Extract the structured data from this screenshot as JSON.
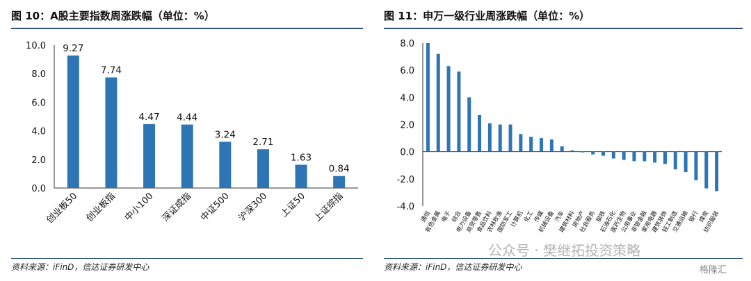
{
  "left": {
    "title": "图 10：A股主要指数周涨跌幅（单位：%）",
    "source": "资料来源：iFinD，信达证券研发中心",
    "chart_data": {
      "type": "bar",
      "categories": [
        "创业板50",
        "创业板指",
        "中小100",
        "深证成指",
        "中证500",
        "沪深300",
        "上证50",
        "上证综指"
      ],
      "values": [
        9.27,
        7.74,
        4.47,
        4.44,
        3.24,
        2.71,
        1.63,
        0.84
      ],
      "value_labels": [
        "9.27",
        "7.74",
        "4.47",
        "4.44",
        "3.24",
        "2.71",
        "1.63",
        "0.84"
      ],
      "ylim": [
        0,
        10
      ],
      "yticks": [
        "0.0",
        "2.0",
        "4.0",
        "6.0",
        "8.0",
        "10.0"
      ],
      "bar_color": "#2e75b6"
    }
  },
  "right": {
    "title": "图 11：申万一级行业周涨跌幅（单位：%）",
    "source": "资料来源：iFinD，信达证券研发中心",
    "chart_data": {
      "type": "bar",
      "categories": [
        "通信",
        "有色金属",
        "电子",
        "综合",
        "电力设备",
        "商贸零售",
        "食品饮料",
        "农林牧渔",
        "国防军工",
        "计算机",
        "化工",
        "传媒",
        "机械设备",
        "汽车",
        "建筑材料",
        "房地产",
        "社会服务",
        "钢铁",
        "石油石化",
        "医药生物",
        "公用事业",
        "非银金融",
        "家用电器",
        "建筑装饰",
        "轻工制造",
        "交通运输",
        "银行",
        "煤炭",
        "纺织服装"
      ],
      "values": [
        8.0,
        7.2,
        6.3,
        5.9,
        4.0,
        2.7,
        2.1,
        2.0,
        2.0,
        1.3,
        1.1,
        1.0,
        0.9,
        0.4,
        0.1,
        -0.05,
        -0.2,
        -0.3,
        -0.5,
        -0.6,
        -0.7,
        -0.7,
        -0.8,
        -0.9,
        -1.3,
        -1.5,
        -2.1,
        -2.7,
        -2.9
      ],
      "ylim": [
        -4,
        8
      ],
      "yticks": [
        "-4.0",
        "-2.0",
        "0.0",
        "2.0",
        "4.0",
        "6.0",
        "8.0"
      ],
      "bar_color": "#2e75b6"
    }
  },
  "watermark": "公众号 · 樊继拓投资策略",
  "watermark_logo": "格隆汇"
}
